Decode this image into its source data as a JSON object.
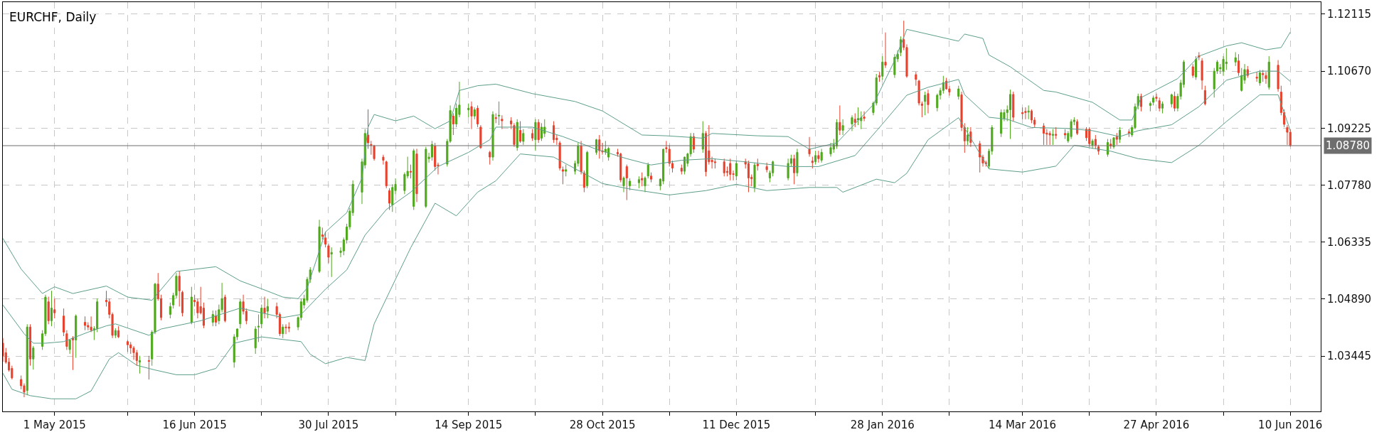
{
  "chart_data": {
    "type": "candlestick",
    "title": "EURCHF, Daily",
    "x": [
      "2015-04-14",
      "2015-04-15",
      "2015-04-16",
      "2015-04-17",
      "2015-04-20",
      "2015-04-21",
      "2015-04-22",
      "2015-04-23",
      "2015-04-24",
      "2015-04-27",
      "2015-04-28",
      "2015-04-29",
      "2015-04-30",
      "2015-05-01",
      "2015-05-04",
      "2015-05-05",
      "2015-05-06",
      "2015-05-07",
      "2015-05-08",
      "2015-05-11",
      "2015-05-12",
      "2015-05-13",
      "2015-05-14",
      "2015-05-15",
      "2015-05-18",
      "2015-05-19",
      "2015-05-20",
      "2015-05-21",
      "2015-05-22",
      "2015-05-25",
      "2015-05-26",
      "2015-05-27",
      "2015-05-28",
      "2015-05-29",
      "2015-06-01",
      "2015-06-02",
      "2015-06-03",
      "2015-06-04",
      "2015-06-05",
      "2015-06-08",
      "2015-06-09",
      "2015-06-10",
      "2015-06-11",
      "2015-06-12",
      "2015-06-15",
      "2015-06-16",
      "2015-06-17",
      "2015-06-18",
      "2015-06-19",
      "2015-06-22",
      "2015-06-23",
      "2015-06-24",
      "2015-06-25",
      "2015-06-26",
      "2015-06-29",
      "2015-06-30",
      "2015-07-01",
      "2015-07-02",
      "2015-07-03",
      "2015-07-06",
      "2015-07-07",
      "2015-07-08",
      "2015-07-09",
      "2015-07-10",
      "2015-07-13",
      "2015-07-14",
      "2015-07-15",
      "2015-07-16",
      "2015-07-17",
      "2015-07-20",
      "2015-07-21",
      "2015-07-22",
      "2015-07-23",
      "2015-07-24",
      "2015-07-27",
      "2015-07-28",
      "2015-07-29",
      "2015-07-30",
      "2015-07-31",
      "2015-08-03",
      "2015-08-04",
      "2015-08-05",
      "2015-08-06",
      "2015-08-07",
      "2015-08-10",
      "2015-08-11",
      "2015-08-12",
      "2015-08-13",
      "2015-08-14",
      "2015-08-17",
      "2015-08-18",
      "2015-08-19",
      "2015-08-20",
      "2015-08-21",
      "2015-08-24",
      "2015-08-25",
      "2015-08-26",
      "2015-08-27",
      "2015-08-28",
      "2015-08-31",
      "2015-09-01",
      "2015-09-02",
      "2015-09-03",
      "2015-09-04",
      "2015-09-07",
      "2015-09-08",
      "2015-09-09",
      "2015-09-10",
      "2015-09-11",
      "2015-09-14",
      "2015-09-15",
      "2015-09-16",
      "2015-09-17",
      "2015-09-18",
      "2015-09-21",
      "2015-09-22",
      "2015-09-23",
      "2015-09-24",
      "2015-09-25",
      "2015-09-28",
      "2015-09-29",
      "2015-09-30",
      "2015-10-01",
      "2015-10-02",
      "2015-10-05",
      "2015-10-06",
      "2015-10-07",
      "2015-10-08",
      "2015-10-09",
      "2015-10-12",
      "2015-10-13",
      "2015-10-14",
      "2015-10-15",
      "2015-10-16",
      "2015-10-19",
      "2015-10-20",
      "2015-10-21",
      "2015-10-22",
      "2015-10-23",
      "2015-10-26",
      "2015-10-27",
      "2015-10-28",
      "2015-10-29",
      "2015-10-30",
      "2015-11-02",
      "2015-11-03",
      "2015-11-04",
      "2015-11-05",
      "2015-11-06",
      "2015-11-09",
      "2015-11-10",
      "2015-11-11",
      "2015-11-12",
      "2015-11-13",
      "2015-11-16",
      "2015-11-17",
      "2015-11-18",
      "2015-11-19",
      "2015-11-20",
      "2015-11-23",
      "2015-11-24",
      "2015-11-25",
      "2015-11-26",
      "2015-11-27",
      "2015-11-30",
      "2015-12-01",
      "2015-12-02",
      "2015-12-03",
      "2015-12-04",
      "2015-12-07",
      "2015-12-08",
      "2015-12-09",
      "2015-12-10",
      "2015-12-11",
      "2015-12-14",
      "2015-12-15",
      "2015-12-16",
      "2015-12-17",
      "2015-12-18",
      "2015-12-21",
      "2015-12-22",
      "2015-12-23",
      "2015-12-28",
      "2015-12-29",
      "2015-12-30",
      "2015-12-31",
      "2016-01-04",
      "2016-01-05",
      "2016-01-06",
      "2016-01-07",
      "2016-01-08",
      "2016-01-11",
      "2016-01-12",
      "2016-01-13",
      "2016-01-14",
      "2016-01-15",
      "2016-01-18",
      "2016-01-19",
      "2016-01-20",
      "2016-01-21",
      "2016-01-22",
      "2016-01-25",
      "2016-01-26",
      "2016-01-27",
      "2016-01-28",
      "2016-01-29",
      "2016-02-01",
      "2016-02-02",
      "2016-02-03",
      "2016-02-04",
      "2016-02-05",
      "2016-02-08",
      "2016-02-09",
      "2016-02-10",
      "2016-02-11",
      "2016-02-12",
      "2016-02-15",
      "2016-02-16",
      "2016-02-17",
      "2016-02-18",
      "2016-02-19",
      "2016-02-22",
      "2016-02-23",
      "2016-02-24",
      "2016-02-25",
      "2016-02-26",
      "2016-02-29",
      "2016-03-01",
      "2016-03-02",
      "2016-03-03",
      "2016-03-04",
      "2016-03-07",
      "2016-03-08",
      "2016-03-09",
      "2016-03-10",
      "2016-03-11",
      "2016-03-14",
      "2016-03-15",
      "2016-03-16",
      "2016-03-17",
      "2016-03-18",
      "2016-03-21",
      "2016-03-22",
      "2016-03-23",
      "2016-03-24",
      "2016-03-25",
      "2016-03-28",
      "2016-03-29",
      "2016-03-30",
      "2016-03-31",
      "2016-04-01",
      "2016-04-04",
      "2016-04-05",
      "2016-04-06",
      "2016-04-07",
      "2016-04-08",
      "2016-04-11",
      "2016-04-12",
      "2016-04-13",
      "2016-04-14",
      "2016-04-15",
      "2016-04-18",
      "2016-04-19",
      "2016-04-20",
      "2016-04-21",
      "2016-04-22",
      "2016-04-25",
      "2016-04-26",
      "2016-04-27",
      "2016-04-28",
      "2016-04-29",
      "2016-05-02",
      "2016-05-03",
      "2016-05-04",
      "2016-05-05",
      "2016-05-06",
      "2016-05-09",
      "2016-05-10",
      "2016-05-11",
      "2016-05-12",
      "2016-05-13",
      "2016-05-16",
      "2016-05-17",
      "2016-05-18",
      "2016-05-19",
      "2016-05-20",
      "2016-05-23",
      "2016-05-24",
      "2016-05-25",
      "2016-05-26",
      "2016-05-27",
      "2016-05-30",
      "2016-05-31",
      "2016-06-01",
      "2016-06-02",
      "2016-06-03",
      "2016-06-06",
      "2016-06-07",
      "2016-06-08",
      "2016-06-09",
      "2016-06-10"
    ],
    "ohlc": [
      [
        1.0377,
        1.039,
        1.033,
        1.0345
      ],
      [
        1.0353,
        1.0365,
        1.0325,
        1.0329
      ],
      [
        1.0329,
        1.034,
        1.0305,
        1.0309
      ],
      [
        1.0313,
        1.032,
        1.0285,
        1.0289
      ],
      [
        1.0285,
        1.0295,
        1.026,
        1.0269
      ],
      [
        1.0269,
        1.0275,
        1.024,
        1.0253
      ],
      [
        1.0257,
        1.0425,
        1.0245,
        1.0418
      ],
      [
        1.0418,
        1.0425,
        1.032,
        1.0337
      ],
      [
        1.0337,
        1.037,
        1.031,
        1.0365
      ],
      [
        1.0369,
        1.041,
        1.036,
        1.0401
      ],
      [
        1.0401,
        1.05,
        1.0395,
        1.0494
      ],
      [
        1.0482,
        1.0495,
        1.0425,
        1.0434
      ],
      [
        1.0434,
        1.051,
        1.042,
        1.0466
      ],
      [
        1.0462,
        1.049,
        1.044,
        1.0454
      ],
      [
        1.0446,
        1.0465,
        1.0395,
        1.0405
      ],
      [
        1.0401,
        1.041,
        1.036,
        1.0369
      ],
      [
        1.0361,
        1.0385,
        1.035,
        1.0385
      ],
      [
        1.039,
        1.0395,
        1.0309,
        1.0385
      ],
      [
        1.0385,
        1.045,
        1.034,
        1.0446
      ],
      [
        1.043,
        1.0445,
        1.041,
        1.0422
      ],
      [
        1.0422,
        1.043,
        1.041,
        1.0418
      ],
      [
        1.0418,
        1.0445,
        1.0405,
        1.041
      ],
      [
        1.041,
        1.042,
        1.0385,
        1.0414
      ],
      [
        1.0414,
        1.049,
        1.0405,
        1.0482
      ],
      [
        1.0486,
        1.051,
        1.047,
        1.0482
      ],
      [
        1.0482,
        1.049,
        1.044,
        1.045
      ],
      [
        1.045,
        1.0455,
        1.039,
        1.0397
      ],
      [
        1.0397,
        1.0415,
        1.039,
        1.0409
      ],
      [
        1.0409,
        1.042,
        1.039,
        1.0393
      ],
      [
        1.0381,
        1.0385,
        1.0355,
        1.0373
      ],
      [
        1.0373,
        1.038,
        1.035,
        1.0365
      ],
      [
        1.0365,
        1.037,
        1.0335,
        1.0353
      ],
      [
        1.0353,
        1.036,
        1.032,
        1.0333
      ],
      [
        1.0329,
        1.0345,
        1.03,
        1.0333
      ],
      [
        1.0333,
        1.0345,
        1.0285,
        1.0331
      ],
      [
        1.0337,
        1.041,
        1.032,
        1.0405
      ],
      [
        1.0405,
        1.053,
        1.04,
        1.0527
      ],
      [
        1.0527,
        1.0555,
        1.0485,
        1.049
      ],
      [
        1.049,
        1.05,
        1.0435,
        1.0442
      ],
      [
        1.045,
        1.048,
        1.044,
        1.047
      ],
      [
        1.0474,
        1.0505,
        1.0465,
        1.0498
      ],
      [
        1.0498,
        1.0555,
        1.049,
        1.0547
      ],
      [
        1.0547,
        1.056,
        1.047,
        1.051
      ],
      [
        1.0506,
        1.051,
        1.0445,
        1.0454
      ],
      [
        1.043,
        1.052,
        1.0425,
        1.0494
      ],
      [
        1.0486,
        1.05,
        1.047,
        1.0482
      ],
      [
        1.0482,
        1.049,
        1.044,
        1.0454
      ],
      [
        1.047,
        1.052,
        1.045,
        1.0454
      ],
      [
        1.0466,
        1.048,
        1.0415,
        1.0422
      ],
      [
        1.043,
        1.046,
        1.042,
        1.045
      ],
      [
        1.0446,
        1.046,
        1.042,
        1.043
      ],
      [
        1.0434,
        1.0475,
        1.0425,
        1.0462
      ],
      [
        1.0462,
        1.053,
        1.0455,
        1.049
      ],
      [
        1.0494,
        1.05,
        1.043,
        1.0434
      ],
      [
        1.0329,
        1.04,
        1.0315,
        1.0393
      ],
      [
        1.0393,
        1.0415,
        1.0385,
        1.0413
      ],
      [
        1.0426,
        1.049,
        1.0415,
        1.0482
      ],
      [
        1.0482,
        1.05,
        1.045,
        1.0458
      ],
      [
        1.0458,
        1.0465,
        1.0425,
        1.0434
      ],
      [
        1.0365,
        1.042,
        1.035,
        1.0413
      ],
      [
        1.0418,
        1.045,
        1.038,
        1.042
      ],
      [
        1.0426,
        1.0475,
        1.0415,
        1.0466
      ],
      [
        1.0466,
        1.0495,
        1.044,
        1.0454
      ],
      [
        1.0458,
        1.049,
        1.044,
        1.047
      ],
      [
        1.047,
        1.048,
        1.044,
        1.045
      ],
      [
        1.045,
        1.0455,
        1.0395,
        1.0401
      ],
      [
        1.0401,
        1.0425,
        1.039,
        1.0418
      ],
      [
        1.0418,
        1.0425,
        1.04,
        1.0416
      ],
      [
        1.0418,
        1.043,
        1.0405,
        1.0415
      ],
      [
        1.0418,
        1.0445,
        1.041,
        1.0442
      ],
      [
        1.0442,
        1.049,
        1.0435,
        1.0482
      ],
      [
        1.0474,
        1.05,
        1.0465,
        1.049
      ],
      [
        1.0486,
        1.0545,
        1.048,
        1.0539
      ],
      [
        1.0539,
        1.057,
        1.053,
        1.0563
      ],
      [
        1.0559,
        1.069,
        1.0555,
        1.0672
      ],
      [
        1.0652,
        1.067,
        1.064,
        1.0648
      ],
      [
        1.0644,
        1.066,
        1.062,
        1.0628
      ],
      [
        1.0624,
        1.063,
        1.058,
        1.0595
      ],
      [
        1.0603,
        1.062,
        1.0545,
        1.0607
      ],
      [
        1.0607,
        1.062,
        1.0595,
        1.0611
      ],
      [
        1.0611,
        1.0645,
        1.06,
        1.0639
      ],
      [
        1.0639,
        1.068,
        1.063,
        1.0672
      ],
      [
        1.0672,
        1.072,
        1.0665,
        1.0712
      ],
      [
        1.0708,
        1.079,
        1.07,
        1.078
      ],
      [
        1.076,
        1.0845,
        1.073,
        1.0837
      ],
      [
        1.0829,
        1.092,
        1.082,
        1.0909
      ],
      [
        1.0905,
        1.097,
        1.087,
        1.0885
      ],
      [
        1.0881,
        1.089,
        1.0855,
        1.0879
      ],
      [
        1.0877,
        1.088,
        1.084,
        1.0845
      ],
      [
        1.0849,
        1.0855,
        1.083,
        1.0841
      ],
      [
        1.0837,
        1.084,
        1.077,
        1.0776
      ],
      [
        1.0764,
        1.077,
        1.0715,
        1.0732
      ],
      [
        1.0728,
        1.078,
        1.071,
        1.0772
      ],
      [
        1.0764,
        1.0795,
        1.0755,
        1.078
      ],
      [
        1.0764,
        1.081,
        1.0755,
        1.0805
      ],
      [
        1.0801,
        1.085,
        1.0795,
        1.0813
      ],
      [
        1.0813,
        1.083,
        1.0795,
        1.0811
      ],
      [
        1.0724,
        1.087,
        1.0715,
        1.0865
      ],
      [
        1.0857,
        1.087,
        1.0735,
        1.0756
      ],
      [
        1.0724,
        1.0875,
        1.072,
        1.0869
      ],
      [
        1.0845,
        1.086,
        1.0835,
        1.0849
      ],
      [
        1.0849,
        1.089,
        1.084,
        1.0881
      ],
      [
        1.0877,
        1.0885,
        1.0815,
        1.0825
      ],
      [
        1.0829,
        1.0835,
        1.0805,
        1.0827
      ],
      [
        1.0831,
        1.0895,
        1.0825,
        1.0889
      ],
      [
        1.0889,
        1.098,
        1.0885,
        1.0967
      ],
      [
        1.0953,
        1.096,
        1.0905,
        1.0933
      ],
      [
        1.0933,
        1.0985,
        1.0925,
        1.0973
      ],
      [
        1.0957,
        1.104,
        1.095,
        1.0981
      ],
      [
        1.0969,
        1.0985,
        1.095,
        1.0973
      ],
      [
        1.0977,
        1.099,
        1.092,
        1.0953
      ],
      [
        1.0953,
        1.0975,
        1.0945,
        1.0969
      ],
      [
        1.0973,
        1.098,
        1.0925,
        1.0933
      ],
      [
        1.0925,
        1.093,
        1.087,
        1.0873
      ],
      [
        1.0861,
        1.0865,
        1.083,
        1.0849
      ],
      [
        1.0849,
        1.0965,
        1.084,
        1.0957
      ],
      [
        1.0949,
        1.096,
        1.0935,
        1.0947
      ],
      [
        1.0953,
        1.099,
        1.093,
        1.0955
      ],
      [
        1.0945,
        1.0955,
        1.092,
        1.0941
      ],
      [
        1.0941,
        1.095,
        1.092,
        1.0933
      ],
      [
        1.0929,
        1.0935,
        1.0875,
        1.0881
      ],
      [
        1.0873,
        1.0945,
        1.0865,
        1.0937
      ],
      [
        1.0917,
        1.094,
        1.0885,
        1.0889
      ],
      [
        1.0889,
        1.092,
        1.088,
        1.0909
      ],
      [
        1.0909,
        1.092,
        1.089,
        1.0897
      ],
      [
        1.0893,
        1.0945,
        1.0865,
        1.0937
      ],
      [
        1.0937,
        1.0945,
        1.0885,
        1.0893
      ],
      [
        1.0897,
        1.0935,
        1.089,
        1.0925
      ],
      [
        1.0909,
        1.0945,
        1.09,
        1.0925
      ],
      [
        1.0929,
        1.094,
        1.0885,
        1.0893
      ],
      [
        1.0897,
        1.0905,
        1.088,
        1.0893
      ],
      [
        1.0885,
        1.089,
        1.0815,
        1.0821
      ],
      [
        1.0817,
        1.0825,
        1.078,
        1.0813
      ],
      [
        1.0813,
        1.083,
        1.08,
        1.0817
      ],
      [
        1.0813,
        1.084,
        1.0805,
        1.0833
      ],
      [
        1.0833,
        1.0885,
        1.0825,
        1.0877
      ],
      [
        1.0877,
        1.089,
        1.0805,
        1.0812
      ],
      [
        1.0809,
        1.0815,
        1.076,
        1.0772
      ],
      [
        1.0776,
        1.0865,
        1.077,
        1.0861
      ],
      [
        1.0861,
        1.0895,
        1.0855,
        1.0893
      ],
      [
        1.0893,
        1.0905,
        1.0845,
        1.0865
      ],
      [
        1.0865,
        1.0885,
        1.0855,
        1.0862
      ],
      [
        1.0862,
        1.089,
        1.0855,
        1.0869
      ],
      [
        1.0849,
        1.0875,
        1.084,
        1.0871
      ],
      [
        1.0861,
        1.087,
        1.085,
        1.0857
      ],
      [
        1.0857,
        1.086,
        1.0785,
        1.0791
      ],
      [
        1.0776,
        1.08,
        1.076,
        1.0796
      ],
      [
        1.0825,
        1.083,
        1.074,
        1.0796
      ],
      [
        1.0776,
        1.0795,
        1.0765,
        1.0788
      ],
      [
        1.0784,
        1.08,
        1.077,
        1.0792
      ],
      [
        1.0795,
        1.081,
        1.0775,
        1.0791
      ],
      [
        1.0776,
        1.08,
        1.076,
        1.0796
      ],
      [
        1.0801,
        1.0835,
        1.0795,
        1.0829
      ],
      [
        1.0801,
        1.081,
        1.0785,
        1.0793
      ],
      [
        1.0776,
        1.0795,
        1.0765,
        1.0793
      ],
      [
        1.0788,
        1.087,
        1.078,
        1.0869
      ],
      [
        1.0873,
        1.089,
        1.086,
        1.087
      ],
      [
        1.0869,
        1.088,
        1.0825,
        1.0833
      ],
      [
        1.0833,
        1.084,
        1.081,
        1.0821
      ],
      [
        1.0821,
        1.083,
        1.0805,
        1.0813
      ],
      [
        1.0813,
        1.085,
        1.0805,
        1.0849
      ],
      [
        1.0833,
        1.086,
        1.0825,
        1.0857
      ],
      [
        1.0857,
        1.091,
        1.085,
        1.0901
      ],
      [
        1.0901,
        1.091,
        1.086,
        1.0869
      ],
      [
        1.0869,
        1.094,
        1.086,
        1.0909
      ],
      [
        1.0909,
        1.0915,
        1.08,
        1.0812
      ],
      [
        1.0865,
        1.093,
        1.083,
        1.0837
      ],
      [
        1.0841,
        1.085,
        1.082,
        1.0837
      ],
      [
        1.0837,
        1.0845,
        1.082,
        1.0835
      ],
      [
        1.0837,
        1.0845,
        1.08,
        1.0809
      ],
      [
        1.0813,
        1.0825,
        1.08,
        1.081
      ],
      [
        1.0833,
        1.0845,
        1.079,
        1.0805
      ],
      [
        1.0807,
        1.0815,
        1.079,
        1.0805
      ],
      [
        1.0801,
        1.084,
        1.079,
        1.0833
      ],
      [
        1.0837,
        1.0845,
        1.082,
        1.0831
      ],
      [
        1.0833,
        1.084,
        1.076,
        1.0796
      ],
      [
        1.0798,
        1.0805,
        1.0775,
        1.0794
      ],
      [
        1.0772,
        1.0835,
        1.076,
        1.0829
      ],
      [
        1.0831,
        1.0845,
        1.0815,
        1.0827
      ],
      [
        1.0825,
        1.0835,
        1.081,
        1.0817
      ],
      [
        1.0796,
        1.0815,
        1.0785,
        1.0809
      ],
      [
        1.0809,
        1.084,
        1.08,
        1.0837
      ],
      [
        1.0796,
        1.0845,
        1.079,
        1.0833
      ],
      [
        1.0833,
        1.0855,
        1.0825,
        1.0845
      ],
      [
        1.0845,
        1.0855,
        1.078,
        1.0809
      ],
      [
        1.0809,
        1.087,
        1.08,
        1.0861
      ],
      [
        1.0869,
        1.09,
        1.085,
        1.0857
      ],
      [
        1.0839,
        1.085,
        1.082,
        1.0835
      ],
      [
        1.0837,
        1.0865,
        1.083,
        1.0853
      ],
      [
        1.0853,
        1.0865,
        1.0835,
        1.0845
      ],
      [
        1.0841,
        1.087,
        1.0835,
        1.0861
      ],
      [
        1.0857,
        1.0885,
        1.085,
        1.0873
      ],
      [
        1.0869,
        1.0895,
        1.086,
        1.0881
      ],
      [
        1.0877,
        1.0945,
        1.087,
        1.0937
      ],
      [
        1.0937,
        1.098,
        1.0905,
        1.0917
      ],
      [
        1.0917,
        1.0945,
        1.0905,
        1.0929
      ],
      [
        1.0933,
        1.0955,
        1.0915,
        1.0949
      ],
      [
        1.0945,
        1.096,
        1.0925,
        1.0937
      ],
      [
        1.0943,
        1.0975,
        1.093,
        1.0947
      ],
      [
        1.0941,
        1.0965,
        1.092,
        1.0949
      ],
      [
        1.0951,
        1.0965,
        1.094,
        1.0947
      ],
      [
        1.0962,
        1.099,
        1.0955,
        1.0986
      ],
      [
        1.0986,
        1.106,
        1.098,
        1.105
      ],
      [
        1.1056,
        1.1065,
        1.104,
        1.1052
      ],
      [
        1.1054,
        1.1105,
        1.1045,
        1.109
      ],
      [
        1.109,
        1.1165,
        1.1075,
        1.1082
      ],
      [
        1.1058,
        1.111,
        1.105,
        1.1102
      ],
      [
        1.1098,
        1.112,
        1.109,
        1.111
      ],
      [
        1.1114,
        1.1155,
        1.1105,
        1.1147
      ],
      [
        1.1147,
        1.1195,
        1.112,
        1.1127
      ],
      [
        1.1127,
        1.1135,
        1.105,
        1.1054
      ],
      [
        1.1058,
        1.1065,
        1.103,
        1.1046
      ],
      [
        1.1042,
        1.1045,
        1.098,
        1.0986
      ],
      [
        1.0984,
        1.099,
        1.095,
        1.098
      ],
      [
        1.099,
        1.1015,
        1.0955,
        1.1006
      ],
      [
        1.101,
        1.102,
        1.096,
        1.0982
      ],
      [
        1.0974,
        1.101,
        1.0965,
        1.1006
      ],
      [
        1.1006,
        1.1025,
        1.0995,
        1.1018
      ],
      [
        1.1018,
        1.1055,
        1.101,
        1.1038
      ],
      [
        1.1042,
        1.105,
        1.102,
        1.1022
      ],
      [
        1.1022,
        1.103,
        1.1005,
        1.1014
      ],
      [
        1.1003,
        1.103,
        1.0995,
        1.1022
      ],
      [
        1.1007,
        1.1015,
        1.0915,
        1.0924
      ],
      [
        1.0924,
        1.0935,
        1.086,
        1.089
      ],
      [
        1.089,
        1.0925,
        1.088,
        1.0905
      ],
      [
        1.0913,
        1.0925,
        1.0875,
        1.0886
      ],
      [
        1.0883,
        1.089,
        1.081,
        1.0849
      ],
      [
        1.0849,
        1.0855,
        1.0825,
        1.0834
      ],
      [
        1.0835,
        1.084,
        1.0825,
        1.0832
      ],
      [
        1.0826,
        1.087,
        1.082,
        1.0864
      ],
      [
        1.0864,
        1.093,
        1.0855,
        1.0924
      ],
      [
        1.0909,
        1.097,
        1.09,
        1.0962
      ],
      [
        1.0947,
        1.097,
        1.094,
        1.0962
      ],
      [
        1.0962,
        1.098,
        1.094,
        1.0969
      ],
      [
        1.0969,
        1.102,
        1.0895,
        1.1008
      ],
      [
        1.1008,
        1.1015,
        1.094,
        1.095
      ],
      [
        1.0962,
        1.0975,
        1.0945,
        1.0959
      ],
      [
        1.0965,
        1.0975,
        1.0945,
        1.0962
      ],
      [
        1.0963,
        1.098,
        1.0945,
        1.0966
      ],
      [
        1.0966,
        1.097,
        1.0935,
        1.0943
      ],
      [
        1.0943,
        1.095,
        1.0925,
        1.0932
      ],
      [
        1.0928,
        1.0935,
        1.088,
        1.0909
      ],
      [
        1.091,
        1.092,
        1.088,
        1.0907
      ],
      [
        1.0909,
        1.0915,
        1.088,
        1.0905
      ],
      [
        1.0904,
        1.092,
        1.088,
        1.0907
      ],
      [
        1.0907,
        1.0925,
        1.0895,
        1.0904
      ],
      [
        1.0909,
        1.092,
        1.0895,
        1.0905
      ],
      [
        1.089,
        1.0915,
        1.0885,
        1.0909
      ],
      [
        1.0901,
        1.0945,
        1.0895,
        1.0939
      ],
      [
        1.0939,
        1.095,
        1.093,
        1.0943
      ],
      [
        1.0939,
        1.0945,
        1.0905,
        1.0909
      ],
      [
        1.092,
        1.0925,
        1.089,
        1.0898
      ],
      [
        1.092,
        1.0925,
        1.0875,
        1.0883
      ],
      [
        1.0879,
        1.0895,
        1.087,
        1.089
      ],
      [
        1.0894,
        1.0905,
        1.087,
        1.0879
      ],
      [
        1.0875,
        1.088,
        1.0855,
        1.0864
      ],
      [
        1.0856,
        1.0895,
        1.085,
        1.0886
      ],
      [
        1.0882,
        1.0895,
        1.087,
        1.0877
      ],
      [
        1.0875,
        1.09,
        1.087,
        1.0898
      ],
      [
        1.0901,
        1.091,
        1.088,
        1.0894
      ],
      [
        1.0894,
        1.0925,
        1.0885,
        1.0917
      ],
      [
        1.0913,
        1.092,
        1.09,
        1.091
      ],
      [
        1.0905,
        1.093,
        1.09,
        1.0924
      ],
      [
        1.0924,
        1.0985,
        1.092,
        1.0977
      ],
      [
        1.098,
        1.101,
        1.097,
        1.1003
      ],
      [
        1.1003,
        1.101,
        1.0965,
        1.0977
      ],
      [
        1.098,
        1.099,
        1.0965,
        1.0985
      ],
      [
        1.0988,
        1.1005,
        1.098,
        1.0999
      ],
      [
        1.1001,
        1.101,
        1.099,
        1.0998
      ],
      [
        1.0992,
        1.1,
        1.0965,
        1.0973
      ],
      [
        1.0973,
        1.099,
        1.096,
        1.0984
      ],
      [
        1.0984,
        1.101,
        1.0975,
        1.1007
      ],
      [
        1.1003,
        1.1015,
        1.0965,
        1.0973
      ],
      [
        1.0973,
        1.101,
        1.0965,
        1.1003
      ],
      [
        1.1003,
        1.1045,
        1.0995,
        1.1037
      ],
      [
        1.1033,
        1.1095,
        1.1025,
        1.109
      ],
      [
        1.1078,
        1.1085,
        1.105,
        1.1056
      ],
      [
        1.1052,
        1.1105,
        1.1045,
        1.1097
      ],
      [
        1.1106,
        1.1115,
        1.1095,
        1.1103
      ],
      [
        1.1093,
        1.11,
        1.102,
        1.1044
      ],
      [
        1.1018,
        1.103,
        1.098,
        1.0984
      ],
      [
        1.1022,
        1.1075,
        1.1,
        1.1067
      ],
      [
        1.1067,
        1.1095,
        1.106,
        1.109
      ],
      [
        1.1073,
        1.1085,
        1.106,
        1.1076
      ],
      [
        1.1067,
        1.1105,
        1.1055,
        1.1097
      ],
      [
        1.1086,
        1.1125,
        1.107,
        1.109
      ],
      [
        1.109,
        1.1115,
        1.108,
        1.1101
      ],
      [
        1.1093,
        1.111,
        1.1055,
        1.1063
      ],
      [
        1.1018,
        1.1075,
        1.1015,
        1.1056
      ],
      [
        1.1044,
        1.1085,
        1.1035,
        1.1071
      ],
      [
        1.1071,
        1.108,
        1.105,
        1.1056
      ],
      [
        1.1052,
        1.1065,
        1.104,
        1.1049
      ],
      [
        1.1037,
        1.107,
        1.103,
        1.1063
      ],
      [
        1.1061,
        1.107,
        1.104,
        1.1058
      ],
      [
        1.1056,
        1.1065,
        1.1035,
        1.1048
      ],
      [
        1.1026,
        1.1105,
        1.102,
        1.109
      ],
      [
        1.1082,
        1.1095,
        1.1015,
        1.1022
      ],
      [
        1.1014,
        1.103,
        1.0955,
        1.0962
      ],
      [
        1.0962,
        1.097,
        1.0925,
        1.0932
      ],
      [
        1.0924,
        1.093,
        1.088,
        1.0912
      ],
      [
        1.0912,
        1.092,
        1.0875,
        1.0879
      ]
    ],
    "series": [
      {
        "type": "line",
        "color": "#5c9e8a",
        "x": [
          "2015-04-14",
          "2015-04-20",
          "2015-04-27",
          "2015-05-01",
          "2015-05-07",
          "2015-05-18",
          "2015-05-25",
          "2015-06-02",
          "2015-06-10",
          "2015-06-23",
          "2015-07-01",
          "2015-07-08",
          "2015-07-15",
          "2015-07-20",
          "2015-07-23",
          "2015-07-29",
          "2015-08-05",
          "2015-08-10",
          "2015-08-12",
          "2015-08-14",
          "2015-08-21",
          "2015-08-27",
          "2015-09-03",
          "2015-09-08",
          "2015-09-11",
          "2015-09-17",
          "2015-09-23",
          "2015-10-05",
          "2015-10-19",
          "2015-10-28",
          "2015-11-10",
          "2015-11-18",
          "2015-11-30",
          "2015-12-03",
          "2015-12-18",
          "2015-12-28",
          "2016-01-04",
          "2016-01-13",
          "2016-01-25",
          "2016-02-01",
          "2016-02-05",
          "2016-02-22",
          "2016-02-24",
          "2016-03-01",
          "2016-03-03",
          "2016-03-10",
          "2016-03-21",
          "2016-03-25",
          "2016-04-06",
          "2016-04-15",
          "2016-04-19",
          "2016-04-22",
          "2016-05-04",
          "2016-05-11",
          "2016-05-20",
          "2016-05-25",
          "2016-06-02",
          "2016-06-07",
          "2016-06-10"
        ],
        "values": [
          1.0643,
          1.0565,
          1.0503,
          1.052,
          1.0503,
          1.0522,
          1.0494,
          1.0486,
          1.0559,
          1.0571,
          1.0535,
          1.0515,
          1.0494,
          1.049,
          1.0517,
          1.0659,
          1.0708,
          1.0796,
          1.0925,
          1.0957,
          1.0941,
          1.0953,
          1.0921,
          1.0941,
          1.1018,
          1.103,
          1.1034,
          1.101,
          1.099,
          1.0966,
          1.0905,
          1.0903,
          1.0897,
          1.0909,
          1.0903,
          1.0901,
          1.0869,
          1.0885,
          1.0982,
          1.1094,
          1.1173,
          1.1143,
          1.1161,
          1.115,
          1.1108,
          1.1078,
          1.1018,
          1.1014,
          1.0988,
          1.0943,
          1.0943,
          1.1,
          1.1048,
          1.1105,
          1.1131,
          1.1139,
          1.1121,
          1.1127,
          1.1166
        ]
      },
      {
        "type": "line",
        "color": "#5c9e8a",
        "x": [
          "2015-04-14",
          "2015-04-21",
          "2015-04-24",
          "2015-04-28",
          "2015-05-04",
          "2015-05-12",
          "2015-05-18",
          "2015-05-21",
          "2015-06-01",
          "2015-06-05",
          "2015-06-18",
          "2015-07-01",
          "2015-07-08",
          "2015-07-15",
          "2015-07-21",
          "2015-07-29",
          "2015-08-05",
          "2015-08-11",
          "2015-08-18",
          "2015-08-26",
          "2015-09-04",
          "2015-09-14",
          "2015-09-21",
          "2015-09-23",
          "2015-10-05",
          "2015-10-15",
          "2015-10-26",
          "2015-11-05",
          "2015-11-13",
          "2015-11-23",
          "2015-12-03",
          "2015-12-14",
          "2015-12-28",
          "2016-01-07",
          "2016-01-19",
          "2016-01-28",
          "2016-02-05",
          "2016-02-12",
          "2016-02-22",
          "2016-02-24",
          "2016-03-03",
          "2016-03-09",
          "2016-03-17",
          "2016-03-28",
          "2016-04-06",
          "2016-04-15",
          "2016-04-21",
          "2016-05-02",
          "2016-05-11",
          "2016-05-20",
          "2016-05-31",
          "2016-06-06",
          "2016-06-10"
        ],
        "values": [
          1.0474,
          1.0401,
          1.0377,
          1.0377,
          1.0381,
          1.0405,
          1.0421,
          1.0426,
          1.0397,
          1.0413,
          1.0434,
          1.0466,
          1.0454,
          1.0442,
          1.045,
          1.0514,
          1.0563,
          1.0651,
          1.0716,
          1.076,
          1.0825,
          1.0861,
          1.0893,
          1.0925,
          1.0925,
          1.0901,
          1.0869,
          1.0845,
          1.0829,
          1.0841,
          1.0845,
          1.0837,
          1.0825,
          1.0825,
          1.0853,
          1.0933,
          1.1006,
          1.1026,
          1.1046,
          1.1007,
          1.095,
          1.0945,
          1.0924,
          1.0922,
          1.0916,
          1.0901,
          1.0916,
          1.0931,
          1.0977,
          1.1044,
          1.1067,
          1.1067,
          1.1041
        ]
      },
      {
        "type": "line",
        "color": "#5c9e8a",
        "x": [
          "2015-04-14",
          "2015-04-17",
          "2015-04-23",
          "2015-04-30",
          "2015-05-08",
          "2015-05-13",
          "2015-05-19",
          "2015-05-22",
          "2015-05-28",
          "2015-06-03",
          "2015-06-10",
          "2015-06-16",
          "2015-06-23",
          "2015-06-29",
          "2015-07-08",
          "2015-07-21",
          "2015-07-24",
          "2015-07-29",
          "2015-08-05",
          "2015-08-11",
          "2015-08-14",
          "2015-08-21",
          "2015-08-26",
          "2015-09-03",
          "2015-09-10",
          "2015-09-17",
          "2015-09-23",
          "2015-10-01",
          "2015-10-12",
          "2015-10-28",
          "2015-11-06",
          "2015-11-19",
          "2015-12-01",
          "2015-12-11",
          "2015-12-21",
          "2016-01-04",
          "2016-01-13",
          "2016-01-15",
          "2016-01-26",
          "2016-02-01",
          "2016-02-05",
          "2016-02-12",
          "2016-02-22",
          "2016-03-03",
          "2016-03-14",
          "2016-03-25",
          "2016-03-31",
          "2016-04-12",
          "2016-04-21",
          "2016-05-02",
          "2016-05-11",
          "2016-05-20",
          "2016-05-31",
          "2016-06-06",
          "2016-06-10"
        ],
        "values": [
          1.0301,
          1.026,
          1.0244,
          1.0236,
          1.0236,
          1.0256,
          1.0337,
          1.0353,
          1.0321,
          1.0309,
          1.0297,
          1.0297,
          1.0313,
          1.0377,
          1.0393,
          1.0381,
          1.0349,
          1.0325,
          1.0341,
          1.0333,
          1.0426,
          1.0539,
          1.0619,
          1.0732,
          1.07,
          1.076,
          1.0789,
          1.0857,
          1.0849,
          1.0782,
          1.0768,
          1.0753,
          1.0764,
          1.078,
          1.0764,
          1.0772,
          1.0772,
          1.076,
          1.0793,
          1.0784,
          1.0808,
          1.0893,
          1.0949,
          1.0819,
          1.0811,
          1.0826,
          1.0879,
          1.0864,
          1.0845,
          1.0835,
          1.0879,
          1.0939,
          1.1007,
          1.1007,
          1.0916
        ]
      }
    ],
    "xlim": [
      "2015-04-14",
      "2016-06-20"
    ],
    "xticks": [
      {
        "value": "2015-05-01",
        "label": "1 May 2015"
      },
      {
        "value": "2015-05-25",
        "label": null
      },
      {
        "value": "2015-06-16",
        "label": "16 Jun 2015"
      },
      {
        "value": "2015-07-08",
        "label": null
      },
      {
        "value": "2015-07-30",
        "label": "30 Jul 2015"
      },
      {
        "value": "2015-08-21",
        "label": null
      },
      {
        "value": "2015-09-14",
        "label": "14 Sep 2015"
      },
      {
        "value": "2015-10-06",
        "label": null
      },
      {
        "value": "2015-10-28",
        "label": "28 Oct 2015"
      },
      {
        "value": "2015-11-19",
        "label": null
      },
      {
        "value": "2015-12-11",
        "label": "11 Dec 2015"
      },
      {
        "value": "2016-01-06",
        "label": null
      },
      {
        "value": "2016-01-28",
        "label": "28 Jan 2016"
      },
      {
        "value": "2016-02-19",
        "label": null
      },
      {
        "value": "2016-03-14",
        "label": "14 Mar 2016"
      },
      {
        "value": "2016-04-05",
        "label": null
      },
      {
        "value": "2016-04-27",
        "label": "27 Apr 2016"
      },
      {
        "value": "2016-05-19",
        "label": null
      },
      {
        "value": "2016-06-10",
        "label": "10 Jun 2016"
      }
    ],
    "ylim": [
      1.0204,
      1.1242
    ],
    "yticks": [
      1.03445,
      {
        "value": 1.0489,
        "label": "1.04890"
      },
      1.06335,
      {
        "value": 1.0778,
        "label": "1.07780"
      },
      1.09225,
      {
        "value": 1.1067,
        "label": "1.10670"
      },
      1.12115
    ],
    "grid": true,
    "ref_lines": [
      {
        "axis": "y",
        "value": 1.0878,
        "label": "1.08780",
        "color": "#6e6e6e"
      }
    ]
  }
}
